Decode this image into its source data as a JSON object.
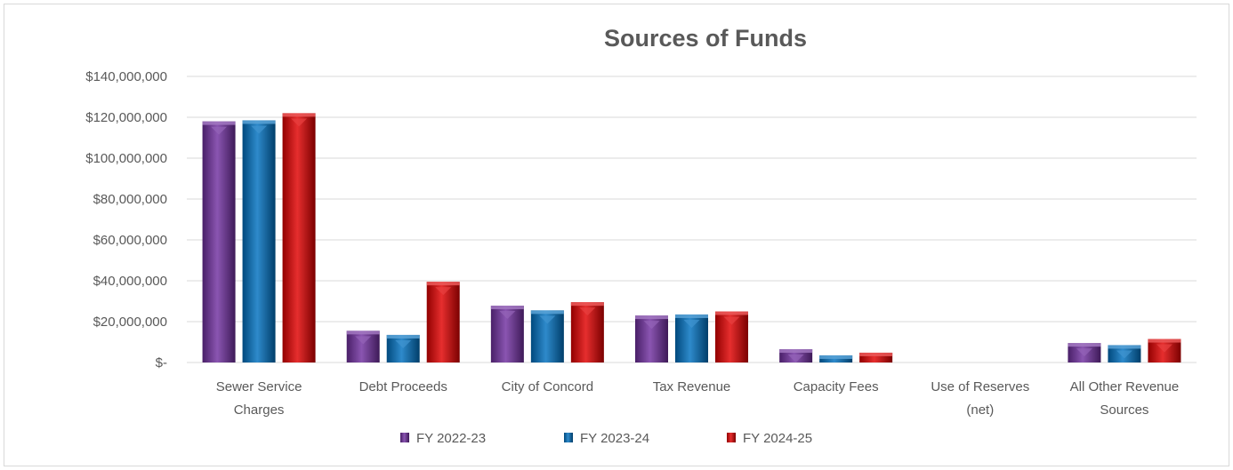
{
  "chart_data": {
    "type": "bar",
    "title": "Sources of Funds",
    "xlabel": "",
    "ylabel": "",
    "ylim": [
      0,
      140000000
    ],
    "yticks": [
      0,
      20000000,
      40000000,
      60000000,
      80000000,
      100000000,
      120000000,
      140000000
    ],
    "ytick_labels": [
      "$-",
      "$20,000,000",
      "$40,000,000",
      "$60,000,000",
      "$80,000,000",
      "$100,000,000",
      "$120,000,000",
      "$140,000,000"
    ],
    "categories": [
      [
        "Sewer Service",
        "Charges"
      ],
      [
        "Debt Proceeds"
      ],
      [
        "City of Concord"
      ],
      [
        "Tax Revenue"
      ],
      [
        "Capacity Fees"
      ],
      [
        "Use of Reserves",
        "(net)"
      ],
      [
        "All Other Revenue",
        "Sources"
      ]
    ],
    "series": [
      {
        "name": "FY 2022-23",
        "color": "#7030A0",
        "values": [
          118000000,
          15500000,
          27800000,
          23000000,
          6500000,
          0,
          9500000
        ]
      },
      {
        "name": "FY 2023-24",
        "color": "#0070C0",
        "values": [
          118500000,
          13500000,
          25500000,
          23500000,
          3500000,
          0,
          8500000
        ]
      },
      {
        "name": "FY 2024-25",
        "color": "#E00000",
        "values": [
          122000000,
          39500000,
          29500000,
          25000000,
          4800000,
          0,
          11500000
        ]
      }
    ],
    "grid": true,
    "legend": "bottom"
  }
}
